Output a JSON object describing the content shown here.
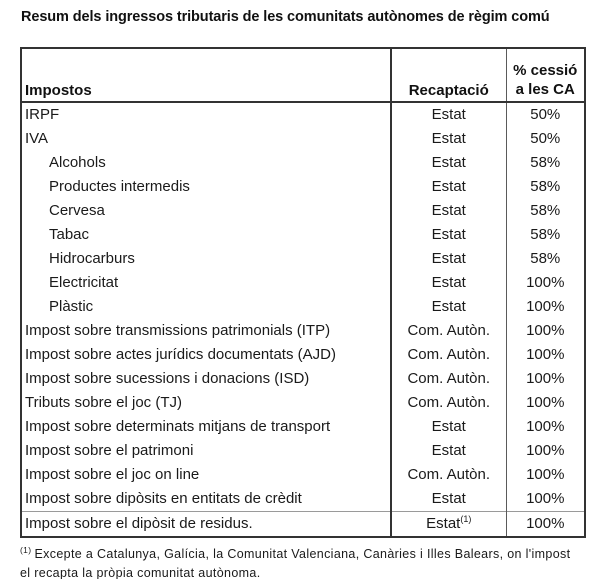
{
  "title": "Resum dels ingressos tributaris de les comunitats autònomes de règim comú",
  "colors": {
    "background": "#ffffff",
    "text": "#1a1a1a",
    "border": "#333333",
    "faint_rule": "#9a9a9a"
  },
  "table": {
    "headers": {
      "col1": "Impostos",
      "col2": "Recaptació",
      "col3_line1": "% cessió",
      "col3_line2": "a les CA"
    },
    "rows": [
      {
        "impost": "IRPF",
        "indent": false,
        "recaptacio": "Estat",
        "recaptacio_sup": "",
        "cessio": "50%",
        "separator_above": false
      },
      {
        "impost": "IVA",
        "indent": false,
        "recaptacio": "Estat",
        "recaptacio_sup": "",
        "cessio": "50%",
        "separator_above": false
      },
      {
        "impost": "Alcohols",
        "indent": true,
        "recaptacio": "Estat",
        "recaptacio_sup": "",
        "cessio": "58%",
        "separator_above": false
      },
      {
        "impost": "Productes intermedis",
        "indent": true,
        "recaptacio": "Estat",
        "recaptacio_sup": "",
        "cessio": "58%",
        "separator_above": false
      },
      {
        "impost": "Cervesa",
        "indent": true,
        "recaptacio": "Estat",
        "recaptacio_sup": "",
        "cessio": "58%",
        "separator_above": false
      },
      {
        "impost": "Tabac",
        "indent": true,
        "recaptacio": "Estat",
        "recaptacio_sup": "",
        "cessio": "58%",
        "separator_above": false
      },
      {
        "impost": "Hidrocarburs",
        "indent": true,
        "recaptacio": "Estat",
        "recaptacio_sup": "",
        "cessio": "58%",
        "separator_above": false
      },
      {
        "impost": "Electricitat",
        "indent": true,
        "recaptacio": "Estat",
        "recaptacio_sup": "",
        "cessio": "100%",
        "separator_above": false
      },
      {
        "impost": "Plàstic",
        "indent": true,
        "recaptacio": "Estat",
        "recaptacio_sup": "",
        "cessio": "100%",
        "separator_above": false
      },
      {
        "impost": "Impost sobre transmissions patrimonials (ITP)",
        "indent": false,
        "recaptacio": "Com. Autòn.",
        "recaptacio_sup": "",
        "cessio": "100%",
        "separator_above": false
      },
      {
        "impost": "Impost sobre actes jurídics documentats (AJD)",
        "indent": false,
        "recaptacio": "Com. Autòn.",
        "recaptacio_sup": "",
        "cessio": "100%",
        "separator_above": false
      },
      {
        "impost": "Impost sobre sucessions i donacions (ISD)",
        "indent": false,
        "recaptacio": "Com. Autòn.",
        "recaptacio_sup": "",
        "cessio": "100%",
        "separator_above": false
      },
      {
        "impost": "Tributs sobre el joc (TJ)",
        "indent": false,
        "recaptacio": "Com. Autòn.",
        "recaptacio_sup": "",
        "cessio": "100%",
        "separator_above": false
      },
      {
        "impost": "Impost sobre determinats mitjans de transport",
        "indent": false,
        "recaptacio": "Estat",
        "recaptacio_sup": "",
        "cessio": "100%",
        "separator_above": false
      },
      {
        "impost": "Impost sobre el patrimoni",
        "indent": false,
        "recaptacio": "Estat",
        "recaptacio_sup": "",
        "cessio": "100%",
        "separator_above": false
      },
      {
        "impost": "Impost sobre el joc on line",
        "indent": false,
        "recaptacio": "Com. Autòn.",
        "recaptacio_sup": "",
        "cessio": "100%",
        "separator_above": false
      },
      {
        "impost": "Impost sobre dipòsits en entitats de crèdit",
        "indent": false,
        "recaptacio": "Estat",
        "recaptacio_sup": "",
        "cessio": "100%",
        "separator_above": false
      },
      {
        "impost": "Impost sobre el dipòsit de residus.",
        "indent": false,
        "recaptacio": "Estat",
        "recaptacio_sup": "(1)",
        "cessio": "100%",
        "separator_above": true
      }
    ]
  },
  "footnote": {
    "sup": "(1)",
    "text": "Excepte a Catalunya, Galícia, la Comunitat Valenciana, Canàries i Illes Balears, on l'impost el recapta la pròpia comunitat autònoma."
  }
}
